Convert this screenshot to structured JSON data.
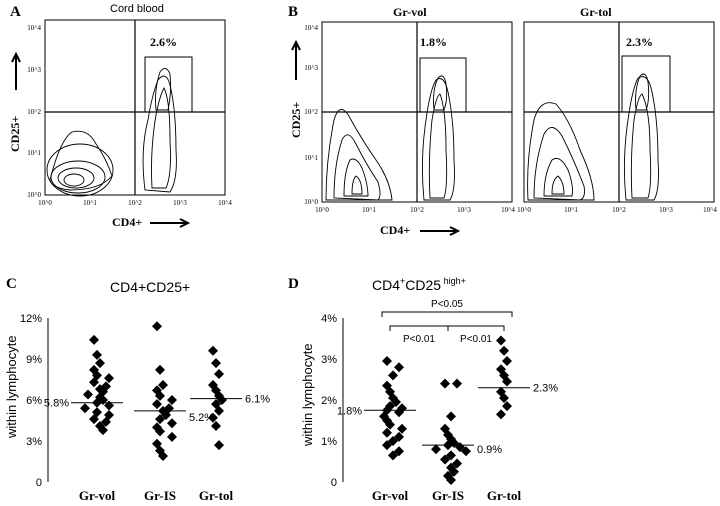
{
  "figure": {
    "panel_labels": [
      "A",
      "B",
      "C",
      "D"
    ]
  },
  "chart_data": [
    {
      "panel": "A",
      "type": "contour",
      "title": "Cord blood",
      "xlabel": "CD4+",
      "ylabel": "CD25+",
      "x_ticks": [
        "10^0",
        "10^1",
        "10^2",
        "10^3",
        "10^4"
      ],
      "y_ticks": [
        "10^0",
        "10^1",
        "10^2",
        "10^3",
        "10^4"
      ],
      "log_scale": true,
      "gate_label": "2.6%",
      "gate_value": 2.6
    },
    {
      "panel": "B-left",
      "type": "contour",
      "title": "Gr-vol",
      "xlabel": "CD4+",
      "ylabel": "CD25+",
      "x_ticks": [
        "10^0",
        "10^1",
        "10^2",
        "10^3",
        "10^4"
      ],
      "y_ticks": [
        "10^0",
        "10^1",
        "10^2",
        "10^3",
        "10^4"
      ],
      "log_scale": true,
      "gate_label": "1.8%",
      "gate_value": 1.8
    },
    {
      "panel": "B-right",
      "type": "contour",
      "title": "Gr-tol",
      "x_ticks": [
        "10^0",
        "10^1",
        "10^2",
        "10^3",
        "10^4"
      ],
      "log_scale": true,
      "gate_label": "2.3%",
      "gate_value": 2.3
    },
    {
      "panel": "C",
      "type": "scatter",
      "title": "CD4+CD25+",
      "ylabel": "within lymphocyte",
      "categories": [
        "Gr-vol",
        "Gr-IS",
        "Gr-tol"
      ],
      "y_ticks": [
        "0",
        "3%",
        "6%",
        "9%",
        "12%"
      ],
      "ylim": [
        0,
        12
      ],
      "mean_labels": [
        "5.8%",
        "5.2%",
        "6.1%"
      ],
      "means": [
        5.8,
        5.2,
        6.1
      ],
      "series": [
        {
          "category": "Gr-vol",
          "values": [
            10.4,
            9.3,
            8.7,
            8.2,
            7.8,
            7.6,
            7.3,
            7.0,
            6.8,
            6.6,
            6.4,
            6.2,
            6.0,
            5.8,
            5.6,
            5.4,
            5.1,
            4.9,
            4.6,
            4.4,
            4.1,
            3.8
          ]
        },
        {
          "category": "Gr-IS",
          "values": [
            11.4,
            8.2,
            7.1,
            6.7,
            6.3,
            6.0,
            5.7,
            5.4,
            5.2,
            4.9,
            4.6,
            4.3,
            4.0,
            3.7,
            3.3,
            2.8,
            2.3,
            1.9
          ]
        },
        {
          "category": "Gr-tol",
          "values": [
            9.6,
            8.7,
            7.9,
            7.1,
            6.7,
            6.3,
            6.0,
            5.7,
            5.2,
            4.7,
            4.1,
            2.7
          ]
        }
      ]
    },
    {
      "panel": "D",
      "type": "scatter",
      "title": "CD4+CD25 high+",
      "ylabel": "within lymphocyte",
      "categories": [
        "Gr-vol",
        "Gr-IS",
        "Gr-tol"
      ],
      "y_ticks": [
        "0",
        "1%",
        "2%",
        "3%",
        "4%"
      ],
      "ylim": [
        0,
        4
      ],
      "mean_labels": [
        "1.8%",
        "0.9%",
        "2.3%"
      ],
      "means": [
        1.75,
        0.9,
        2.3
      ],
      "comparisons": [
        {
          "from": "Gr-vol",
          "to": "Gr-IS",
          "label": "P<0.01"
        },
        {
          "from": "Gr-IS",
          "to": "Gr-tol",
          "label": "P<0.01"
        },
        {
          "from": "Gr-vol",
          "to": "Gr-tol",
          "label": "P<0.05"
        }
      ],
      "series": [
        {
          "category": "Gr-vol",
          "values": [
            2.95,
            2.8,
            2.6,
            2.35,
            2.2,
            2.05,
            1.95,
            1.85,
            1.8,
            1.75,
            1.7,
            1.6,
            1.5,
            1.4,
            1.3,
            1.2,
            1.1,
            1.0,
            0.9,
            0.75,
            0.65
          ]
        },
        {
          "category": "Gr-IS",
          "values": [
            2.4,
            2.4,
            1.6,
            1.3,
            1.15,
            1.05,
            0.95,
            0.9,
            0.85,
            0.8,
            0.75,
            0.65,
            0.55,
            0.45,
            0.35,
            0.25,
            0.15,
            0.05
          ]
        },
        {
          "category": "Gr-tol",
          "values": [
            3.45,
            3.2,
            2.95,
            2.75,
            2.6,
            2.45,
            2.2,
            2.05,
            1.85,
            1.65
          ]
        }
      ]
    }
  ]
}
